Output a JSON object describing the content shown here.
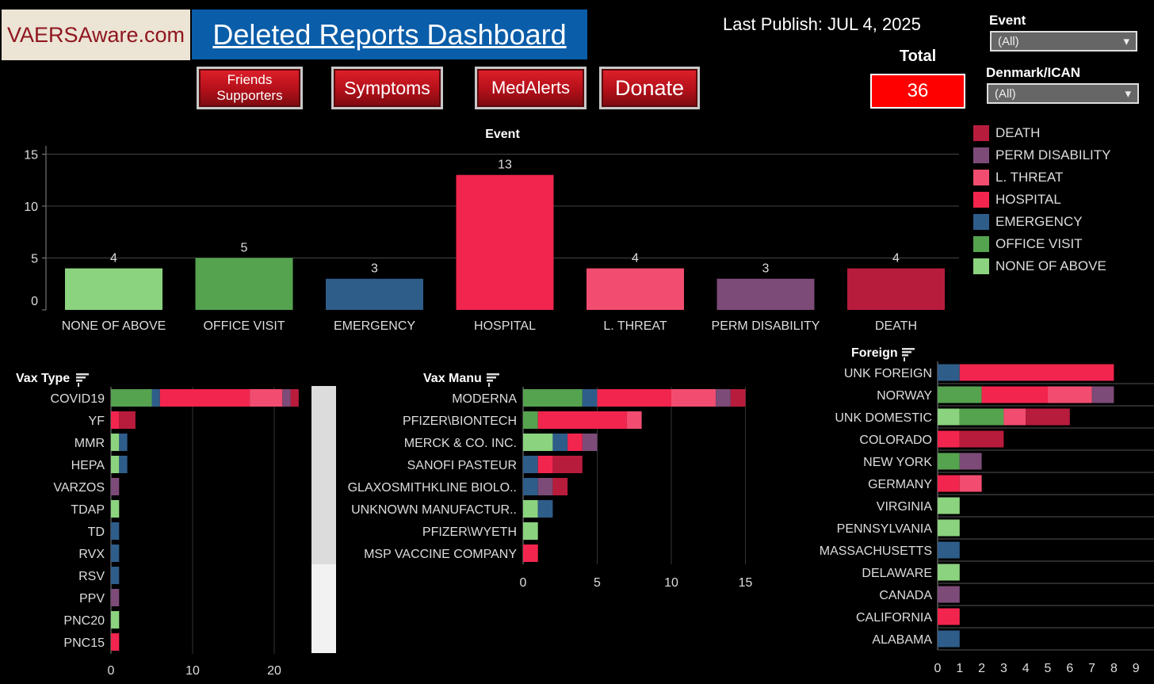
{
  "header": {
    "logo_text": "VAERSAware.com",
    "title": "Deleted Reports Dashboard",
    "last_publish": "Last Publish:  JUL 4, 2025"
  },
  "nav": {
    "friends_line1": "Friends",
    "friends_line2": "Supporters",
    "symptoms": "Symptoms",
    "medalerts": "MedAlerts",
    "donate": "Donate"
  },
  "total": {
    "label": "Total",
    "value": "36"
  },
  "filters": {
    "event_label": "Event",
    "event_value": "(All)",
    "denmark_label": "Denmark/ICAN",
    "denmark_value": "(All)"
  },
  "legend": [
    {
      "label": "DEATH",
      "color": "#b81c3c"
    },
    {
      "label": "PERM DISABILITY",
      "color": "#7c4b78"
    },
    {
      "label": "L. THREAT",
      "color": "#f24d70"
    },
    {
      "label": "HOSPITAL",
      "color": "#f2254e"
    },
    {
      "label": "EMERGENCY",
      "color": "#2e5d8a"
    },
    {
      "label": "OFFICE VISIT",
      "color": "#55a24f"
    },
    {
      "label": "NONE OF ABOVE",
      "color": "#8bd37e"
    }
  ],
  "chart_data": [
    {
      "type": "bar",
      "title": "Event",
      "categories": [
        "NONE OF ABOVE",
        "OFFICE VISIT",
        "EMERGENCY",
        "HOSPITAL",
        "L. THREAT",
        "PERM DISABILITY",
        "DEATH"
      ],
      "values": [
        4,
        5,
        3,
        13,
        4,
        3,
        4
      ],
      "colors": [
        "#8bd37e",
        "#55a24f",
        "#2e5d8a",
        "#f2254e",
        "#f24d70",
        "#7c4b78",
        "#b81c3c"
      ],
      "yticks": [
        0,
        5,
        10,
        15
      ],
      "ylim": [
        0,
        16
      ]
    },
    {
      "type": "bar",
      "orientation": "horizontal-stacked",
      "title": "Vax Type",
      "series_order": [
        "NONE OF ABOVE",
        "OFFICE VISIT",
        "EMERGENCY",
        "HOSPITAL",
        "L. THREAT",
        "PERM DISABILITY",
        "DEATH"
      ],
      "categories": [
        "COVID19",
        "YF",
        "MMR",
        "HEPA",
        "VARZOS",
        "TDAP",
        "TD",
        "RVX",
        "RSV",
        "PPV",
        "PNC20",
        "PNC15"
      ],
      "values": [
        [
          0,
          5,
          1,
          11,
          4,
          1,
          1
        ],
        [
          0,
          0,
          0,
          1,
          0,
          0,
          2
        ],
        [
          1,
          0,
          1,
          0,
          0,
          0,
          0
        ],
        [
          1,
          0,
          1,
          0,
          0,
          0,
          0
        ],
        [
          0,
          0,
          0,
          0,
          0,
          1,
          0
        ],
        [
          1,
          0,
          0,
          0,
          0,
          0,
          0
        ],
        [
          0,
          0,
          1,
          0,
          0,
          0,
          0
        ],
        [
          0,
          0,
          1,
          0,
          0,
          0,
          0
        ],
        [
          0,
          0,
          1,
          0,
          0,
          0,
          0
        ],
        [
          0,
          0,
          0,
          0,
          0,
          1,
          0
        ],
        [
          1,
          0,
          0,
          0,
          0,
          0,
          0
        ],
        [
          0,
          0,
          0,
          1,
          0,
          0,
          0
        ]
      ],
      "xticks": [
        0,
        10,
        20
      ],
      "xlim": [
        0,
        24
      ]
    },
    {
      "type": "bar",
      "orientation": "horizontal-stacked",
      "title": "Vax Manu",
      "series_order": [
        "NONE OF ABOVE",
        "OFFICE VISIT",
        "EMERGENCY",
        "HOSPITAL",
        "L. THREAT",
        "PERM DISABILITY",
        "DEATH"
      ],
      "categories": [
        "MODERNA",
        "PFIZER\\BIONTECH",
        "MERCK & CO. INC.",
        "SANOFI PASTEUR",
        "GLAXOSMITHKLINE BIOLO..",
        "UNKNOWN MANUFACTUR..",
        "PFIZER\\WYETH",
        "MSP VACCINE COMPANY"
      ],
      "values": [
        [
          0,
          4,
          1,
          5,
          3,
          1,
          1
        ],
        [
          0,
          1,
          0,
          6,
          1,
          0,
          0
        ],
        [
          2,
          0,
          1,
          1,
          0,
          1,
          0
        ],
        [
          0,
          0,
          1,
          1,
          0,
          0,
          2
        ],
        [
          0,
          0,
          1,
          0,
          0,
          1,
          1
        ],
        [
          1,
          0,
          1,
          0,
          0,
          0,
          0
        ],
        [
          1,
          0,
          0,
          0,
          0,
          0,
          0
        ],
        [
          0,
          0,
          0,
          1,
          0,
          0,
          0
        ]
      ],
      "xticks": [
        0,
        5,
        10,
        15
      ],
      "xlim": [
        0,
        16
      ]
    },
    {
      "type": "bar",
      "orientation": "horizontal-stacked",
      "title": "Foreign",
      "series_order": [
        "NONE OF ABOVE",
        "OFFICE VISIT",
        "EMERGENCY",
        "HOSPITAL",
        "L. THREAT",
        "PERM DISABILITY",
        "DEATH"
      ],
      "categories": [
        "UNK FOREIGN",
        "NORWAY",
        "UNK DOMESTIC",
        "COLORADO",
        "NEW YORK",
        "GERMANY",
        "VIRGINIA",
        "PENNSYLVANIA",
        "MASSACHUSETTS",
        "DELAWARE",
        "CANADA",
        "CALIFORNIA",
        "ALABAMA"
      ],
      "values": [
        [
          0,
          0,
          1,
          7,
          0,
          0,
          0
        ],
        [
          0,
          2,
          0,
          3,
          2,
          1,
          0
        ],
        [
          1,
          2,
          0,
          0,
          1,
          0,
          2
        ],
        [
          0,
          0,
          0,
          1,
          0,
          0,
          2
        ],
        [
          0,
          1,
          0,
          0,
          0,
          1,
          0
        ],
        [
          0,
          0,
          0,
          1,
          1,
          0,
          0
        ],
        [
          1,
          0,
          0,
          0,
          0,
          0,
          0
        ],
        [
          1,
          0,
          0,
          0,
          0,
          0,
          0
        ],
        [
          0,
          0,
          1,
          0,
          0,
          0,
          0
        ],
        [
          1,
          0,
          0,
          0,
          0,
          0,
          0
        ],
        [
          0,
          0,
          0,
          0,
          0,
          1,
          0
        ],
        [
          0,
          0,
          0,
          1,
          0,
          0,
          0
        ],
        [
          0,
          0,
          1,
          0,
          0,
          0,
          0
        ]
      ],
      "xticks": [
        0,
        1,
        2,
        3,
        4,
        5,
        6,
        7,
        8,
        9
      ],
      "xlim": [
        0,
        9
      ]
    }
  ]
}
